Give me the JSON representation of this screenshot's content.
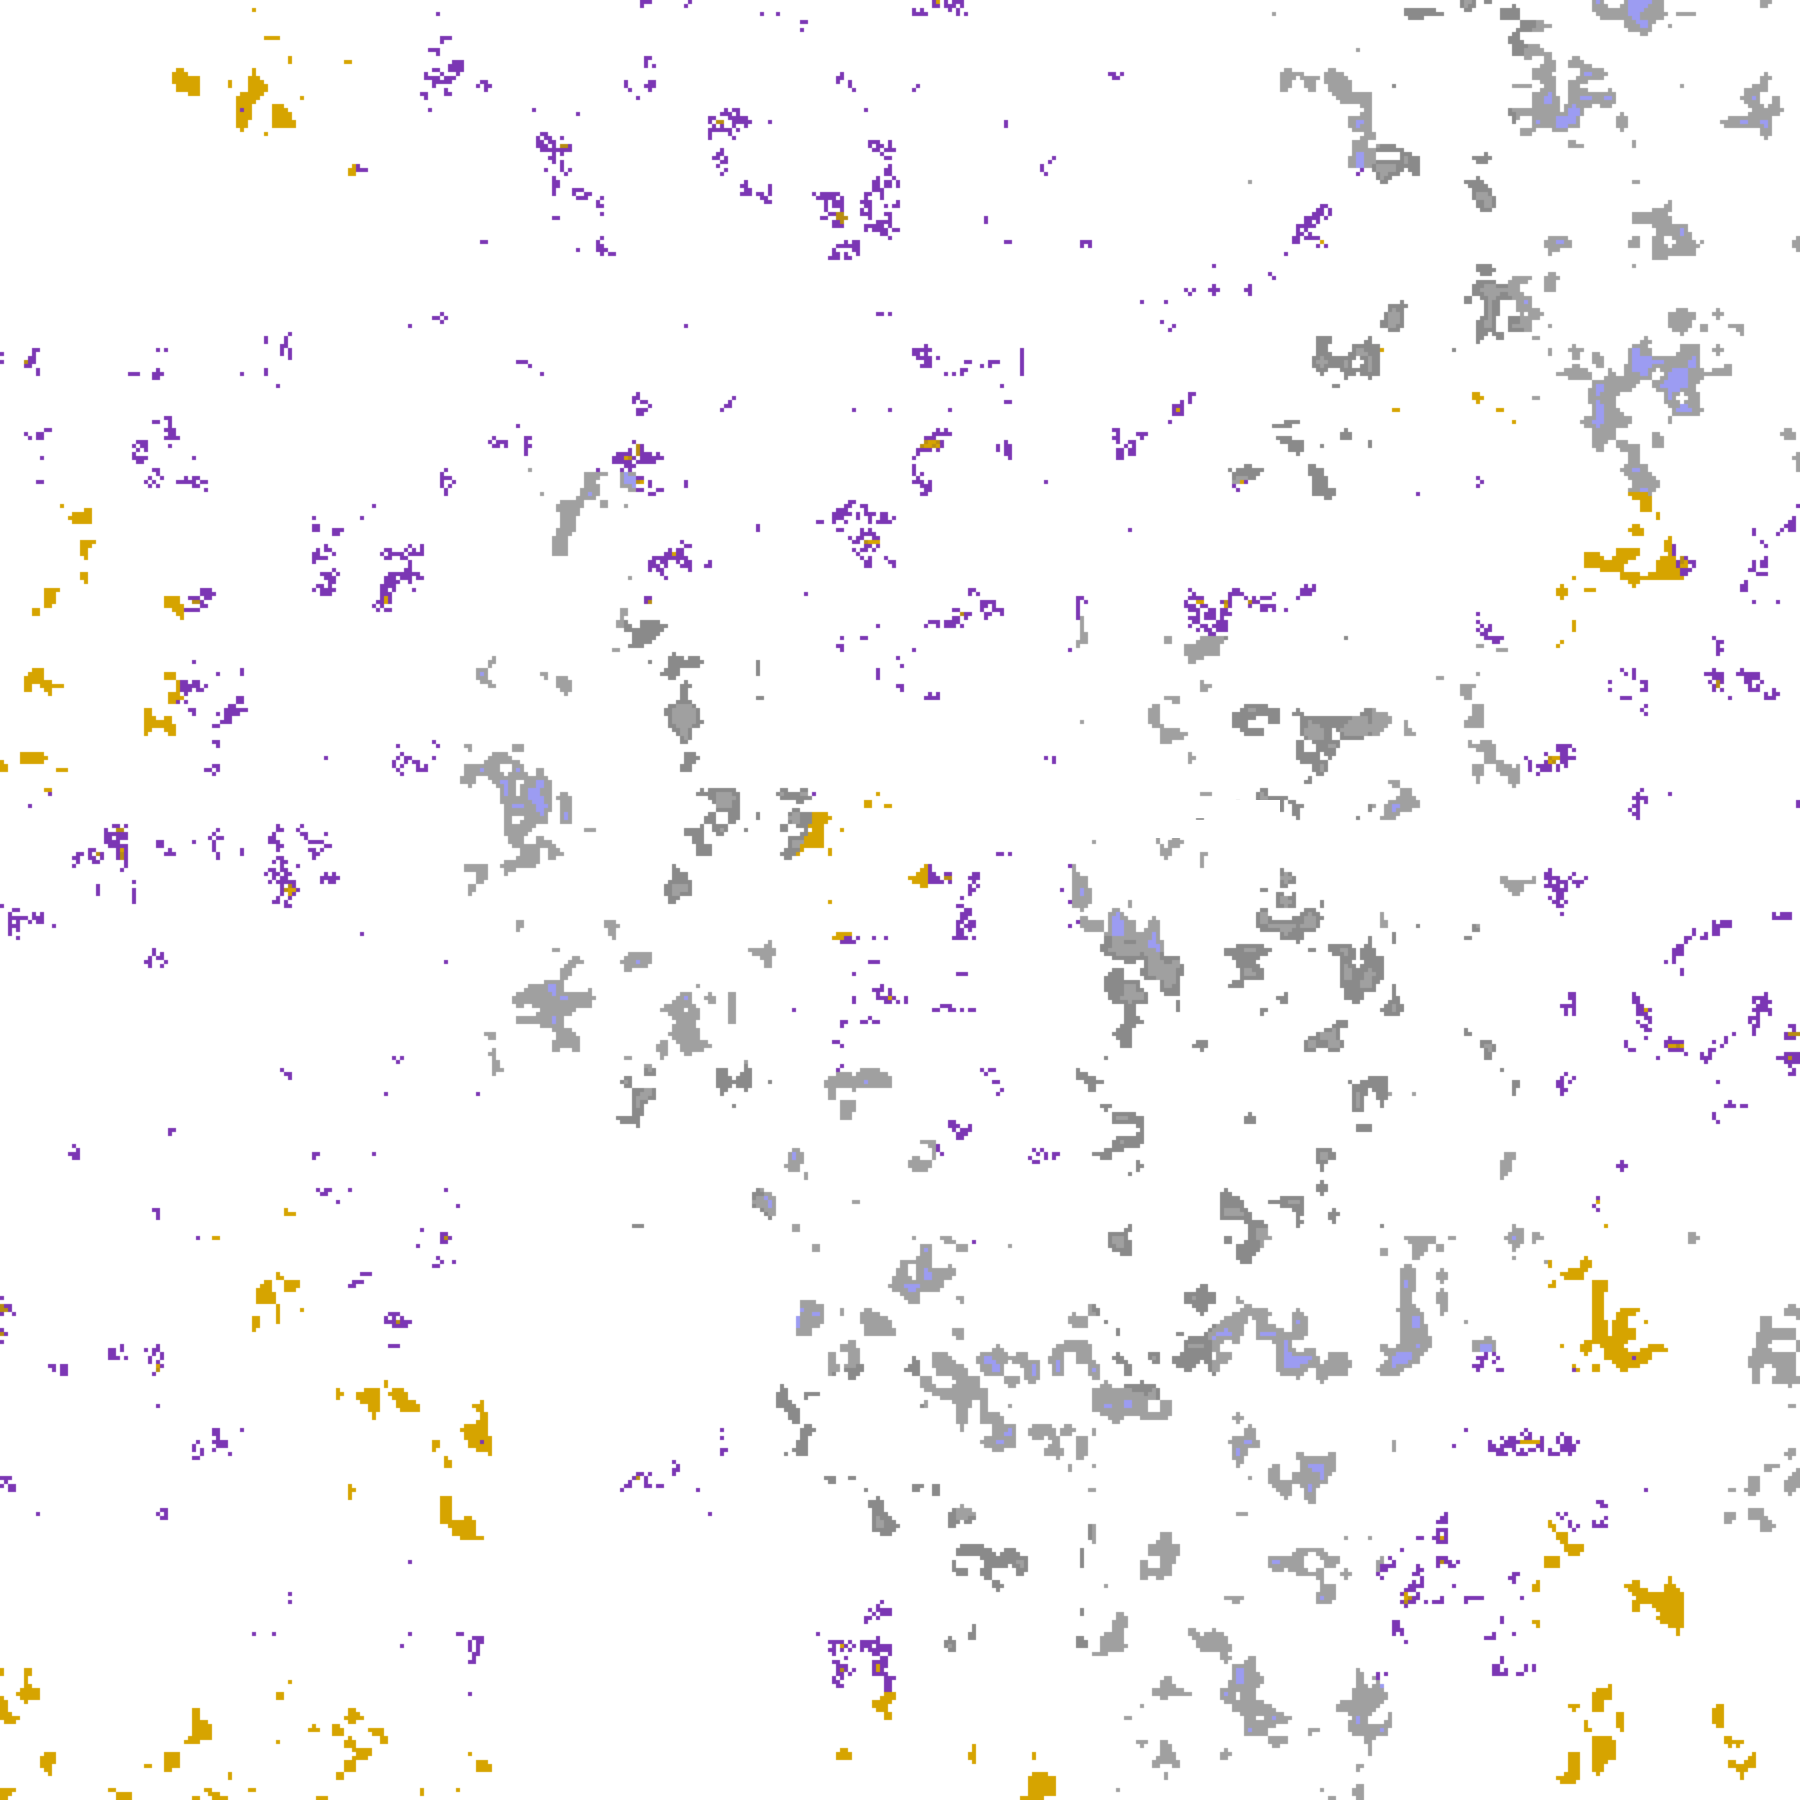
{
  "colors": {
    "clear": "#ffffff",
    "gold": "#d6a400",
    "dark_gold": "#b88d10",
    "purple": "#7b36b4",
    "magenta": "#cc55dd",
    "lavender": "#b4b4f6",
    "light_lavender": "#e6e6ff",
    "blue_lavender": "#9c9cf2",
    "grey": "#a0a0a0",
    "dark_grey": "#8a8a8a",
    "light_grey": "#c4c4c4"
  }
}
